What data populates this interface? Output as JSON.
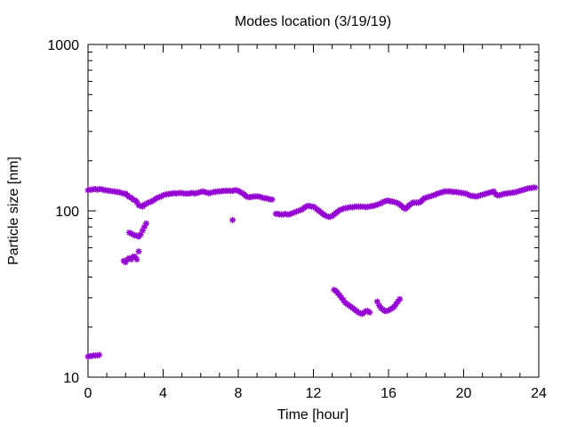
{
  "chart_data": {
    "type": "scatter",
    "title": "Modes location (3/19/19)",
    "xlabel": "Time [hour]",
    "ylabel": "Particle size [nm]",
    "xlim": [
      0,
      24
    ],
    "ylim": [
      10,
      1000
    ],
    "yscale": "log",
    "grid": false,
    "legend": "none",
    "marker_color": "#9400D3",
    "x_ticks": [
      "0",
      "4",
      "8",
      "12",
      "16",
      "20",
      "24"
    ],
    "y_ticks": [
      "10",
      "100",
      "1000"
    ],
    "series": [
      {
        "points": [
          [
            0.0,
            133
          ],
          [
            0.1,
            134
          ],
          [
            0.2,
            134
          ],
          [
            0.3,
            135
          ],
          [
            0.4,
            135
          ],
          [
            0.5,
            134
          ],
          [
            0.6,
            135
          ],
          [
            0.7,
            135
          ],
          [
            0.8,
            134
          ],
          [
            0.9,
            133
          ],
          [
            1.0,
            133
          ],
          [
            1.1,
            132
          ],
          [
            1.2,
            132
          ],
          [
            1.3,
            131
          ],
          [
            1.4,
            131
          ],
          [
            1.5,
            130
          ],
          [
            1.6,
            130
          ],
          [
            1.7,
            129
          ],
          [
            1.8,
            128
          ],
          [
            1.9,
            127
          ],
          [
            2.0,
            127
          ],
          [
            2.1,
            124
          ],
          [
            2.2,
            121
          ],
          [
            2.3,
            120
          ],
          [
            2.4,
            117
          ],
          [
            2.5,
            116
          ],
          [
            2.6,
            113
          ],
          [
            2.7,
            108
          ],
          [
            2.8,
            107
          ],
          [
            2.9,
            106
          ],
          [
            3.0,
            109
          ],
          [
            3.1,
            110
          ],
          [
            3.2,
            112
          ],
          [
            3.3,
            113
          ],
          [
            3.4,
            114
          ],
          [
            3.5,
            116
          ],
          [
            3.6,
            118
          ],
          [
            3.7,
            120
          ],
          [
            3.8,
            121
          ],
          [
            3.9,
            122
          ],
          [
            4.0,
            124
          ],
          [
            4.1,
            125
          ],
          [
            4.2,
            126
          ],
          [
            4.3,
            126
          ],
          [
            4.4,
            127
          ],
          [
            4.5,
            127
          ],
          [
            4.6,
            128
          ],
          [
            4.7,
            127
          ],
          [
            4.8,
            128
          ],
          [
            4.9,
            128
          ],
          [
            5.0,
            128
          ],
          [
            5.1,
            127
          ],
          [
            5.2,
            127
          ],
          [
            5.3,
            127
          ],
          [
            5.4,
            127
          ],
          [
            5.5,
            128
          ],
          [
            5.6,
            128
          ],
          [
            5.7,
            127
          ],
          [
            5.8,
            128
          ],
          [
            5.9,
            129
          ],
          [
            6.0,
            130
          ],
          [
            6.1,
            131
          ],
          [
            6.2,
            130
          ],
          [
            6.3,
            129
          ],
          [
            6.4,
            128
          ],
          [
            6.5,
            128
          ],
          [
            6.6,
            129
          ],
          [
            6.7,
            130
          ],
          [
            6.8,
            130
          ],
          [
            6.9,
            131
          ],
          [
            7.0,
            131
          ],
          [
            7.1,
            131
          ],
          [
            7.2,
            132
          ],
          [
            7.3,
            132
          ],
          [
            7.4,
            132
          ],
          [
            7.5,
            132
          ],
          [
            7.6,
            132
          ],
          [
            7.7,
            132
          ],
          [
            7.8,
            133
          ],
          [
            7.9,
            133
          ],
          [
            8.0,
            132
          ],
          [
            8.1,
            130
          ],
          [
            8.2,
            128
          ],
          [
            8.3,
            126
          ],
          [
            8.4,
            123
          ],
          [
            8.5,
            121
          ],
          [
            8.6,
            121
          ],
          [
            8.7,
            121
          ],
          [
            8.8,
            122
          ],
          [
            8.9,
            122
          ],
          [
            9.0,
            122
          ],
          [
            9.1,
            122
          ],
          [
            9.2,
            121
          ],
          [
            9.3,
            120
          ],
          [
            9.4,
            119
          ],
          [
            9.5,
            119
          ],
          [
            9.6,
            118
          ],
          [
            9.7,
            117
          ],
          [
            9.8,
            117
          ],
          [
            10.0,
            96
          ],
          [
            10.1,
            96
          ],
          [
            10.2,
            95
          ],
          [
            10.3,
            95
          ],
          [
            10.4,
            95
          ],
          [
            10.5,
            96
          ],
          [
            10.6,
            95
          ],
          [
            10.7,
            95
          ],
          [
            10.8,
            96
          ],
          [
            10.9,
            97
          ],
          [
            11.0,
            98
          ],
          [
            11.1,
            99
          ],
          [
            11.2,
            100
          ],
          [
            11.3,
            101
          ],
          [
            11.4,
            102
          ],
          [
            11.5,
            104
          ],
          [
            11.6,
            106
          ],
          [
            11.7,
            107
          ],
          [
            11.8,
            107
          ],
          [
            11.9,
            106
          ],
          [
            12.0,
            106
          ],
          [
            12.1,
            104
          ],
          [
            12.2,
            102
          ],
          [
            12.3,
            100
          ],
          [
            12.4,
            98
          ],
          [
            12.5,
            96
          ],
          [
            12.6,
            94
          ],
          [
            12.7,
            93
          ],
          [
            12.8,
            92
          ],
          [
            12.9,
            92
          ],
          [
            13.0,
            93
          ],
          [
            13.1,
            95
          ],
          [
            13.2,
            97
          ],
          [
            13.3,
            99
          ],
          [
            13.4,
            101
          ],
          [
            13.5,
            102
          ],
          [
            13.6,
            103
          ],
          [
            13.7,
            104
          ],
          [
            13.8,
            104
          ],
          [
            13.9,
            105
          ],
          [
            14.0,
            105
          ],
          [
            14.1,
            105
          ],
          [
            14.2,
            106
          ],
          [
            14.3,
            106
          ],
          [
            14.4,
            106
          ],
          [
            14.5,
            106
          ],
          [
            14.6,
            106
          ],
          [
            14.7,
            106
          ],
          [
            14.8,
            105
          ],
          [
            14.9,
            106
          ],
          [
            15.0,
            106
          ],
          [
            15.1,
            107
          ],
          [
            15.2,
            107
          ],
          [
            15.3,
            108
          ],
          [
            15.4,
            109
          ],
          [
            15.5,
            110
          ],
          [
            15.6,
            111
          ],
          [
            15.7,
            113
          ],
          [
            15.8,
            114
          ],
          [
            15.9,
            115
          ],
          [
            16.0,
            115
          ],
          [
            16.1,
            114
          ],
          [
            16.2,
            114
          ],
          [
            16.3,
            113
          ],
          [
            16.4,
            112
          ],
          [
            16.5,
            111
          ],
          [
            16.6,
            109
          ],
          [
            16.7,
            107
          ],
          [
            16.8,
            104
          ],
          [
            16.9,
            103
          ],
          [
            17.0,
            105
          ],
          [
            17.1,
            108
          ],
          [
            17.2,
            110
          ],
          [
            17.3,
            112
          ],
          [
            17.4,
            112
          ],
          [
            17.5,
            112
          ],
          [
            17.6,
            112
          ],
          [
            17.7,
            113
          ],
          [
            17.8,
            116
          ],
          [
            17.9,
            119
          ],
          [
            18.0,
            120
          ],
          [
            18.1,
            121
          ],
          [
            18.2,
            122
          ],
          [
            18.3,
            123
          ],
          [
            18.4,
            124
          ],
          [
            18.5,
            125
          ],
          [
            18.6,
            127
          ],
          [
            18.7,
            128
          ],
          [
            18.8,
            129
          ],
          [
            18.9,
            130
          ],
          [
            19.0,
            131
          ],
          [
            19.1,
            131
          ],
          [
            19.2,
            131
          ],
          [
            19.3,
            131
          ],
          [
            19.4,
            130
          ],
          [
            19.5,
            130
          ],
          [
            19.6,
            130
          ],
          [
            19.7,
            129
          ],
          [
            19.8,
            129
          ],
          [
            19.9,
            128
          ],
          [
            20.0,
            128
          ],
          [
            20.1,
            127
          ],
          [
            20.2,
            126
          ],
          [
            20.3,
            124
          ],
          [
            20.4,
            123
          ],
          [
            20.5,
            123
          ],
          [
            20.6,
            122
          ],
          [
            20.7,
            122
          ],
          [
            20.8,
            123
          ],
          [
            20.9,
            124
          ],
          [
            21.0,
            125
          ],
          [
            21.1,
            126
          ],
          [
            21.2,
            127
          ],
          [
            21.3,
            128
          ],
          [
            21.4,
            129
          ],
          [
            21.5,
            130
          ],
          [
            21.6,
            131
          ],
          [
            21.7,
            126
          ],
          [
            21.8,
            124
          ],
          [
            21.9,
            124
          ],
          [
            22.0,
            125
          ],
          [
            22.1,
            126
          ],
          [
            22.2,
            127
          ],
          [
            22.3,
            127
          ],
          [
            22.4,
            128
          ],
          [
            22.5,
            128
          ],
          [
            22.6,
            129
          ],
          [
            22.7,
            129
          ],
          [
            22.8,
            130
          ],
          [
            22.9,
            131
          ],
          [
            23.0,
            132
          ],
          [
            23.1,
            133
          ],
          [
            23.2,
            134
          ],
          [
            23.3,
            135
          ],
          [
            23.4,
            136
          ],
          [
            23.5,
            137
          ],
          [
            23.6,
            137
          ],
          [
            23.7,
            138
          ],
          [
            23.8,
            138
          ],
          [
            7.7,
            88
          ],
          [
            0.0,
            13.3
          ],
          [
            0.1,
            13.4
          ],
          [
            0.2,
            13.4
          ],
          [
            0.3,
            13.5
          ],
          [
            0.4,
            13.5
          ],
          [
            0.5,
            13.5
          ],
          [
            0.6,
            13.6
          ],
          [
            1.9,
            50
          ],
          [
            2.0,
            49
          ],
          [
            2.1,
            51
          ],
          [
            2.2,
            52
          ],
          [
            2.3,
            51
          ],
          [
            2.4,
            53
          ],
          [
            2.5,
            53
          ],
          [
            2.6,
            51
          ],
          [
            2.7,
            57
          ],
          [
            2.2,
            74
          ],
          [
            2.3,
            73
          ],
          [
            2.4,
            72
          ],
          [
            2.5,
            71
          ],
          [
            2.6,
            71
          ],
          [
            2.7,
            70
          ],
          [
            2.8,
            72
          ],
          [
            2.9,
            76
          ],
          [
            3.0,
            80
          ],
          [
            3.1,
            84
          ],
          [
            13.1,
            33.5
          ],
          [
            13.2,
            33
          ],
          [
            13.3,
            32
          ],
          [
            13.4,
            31
          ],
          [
            13.5,
            30
          ],
          [
            13.6,
            29
          ],
          [
            13.7,
            28
          ],
          [
            13.8,
            27.5
          ],
          [
            13.9,
            27
          ],
          [
            14.0,
            26.5
          ],
          [
            14.1,
            26
          ],
          [
            14.2,
            25.5
          ],
          [
            14.3,
            25
          ],
          [
            14.4,
            24.5
          ],
          [
            14.5,
            24.2
          ],
          [
            14.6,
            24
          ],
          [
            14.7,
            24.5
          ],
          [
            14.8,
            25
          ],
          [
            14.9,
            25
          ],
          [
            15.0,
            24.5
          ],
          [
            15.4,
            28.5
          ],
          [
            15.5,
            27
          ],
          [
            15.6,
            26
          ],
          [
            15.7,
            25.5
          ],
          [
            15.8,
            25
          ],
          [
            15.9,
            25
          ],
          [
            16.0,
            25.2
          ],
          [
            16.1,
            25.6
          ],
          [
            16.2,
            26
          ],
          [
            16.3,
            26.5
          ],
          [
            16.4,
            27.5
          ],
          [
            16.5,
            28.5
          ],
          [
            16.6,
            29.5
          ]
        ]
      }
    ]
  }
}
